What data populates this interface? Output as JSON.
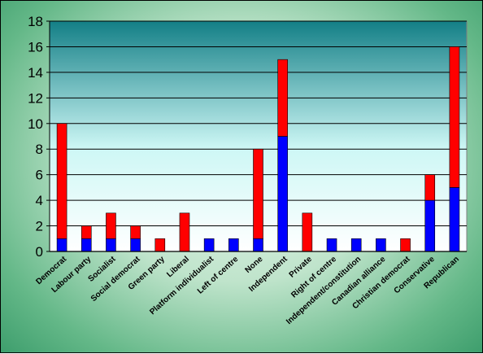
{
  "chart_data": {
    "type": "bar",
    "stacked": true,
    "categories": [
      "Democrat",
      "Labour party",
      "Socialist",
      "Social democrat",
      "Green party",
      "Liberal",
      "Platform individualist",
      "Left of centre",
      "None",
      "Independent",
      "Private",
      "Right of centre",
      "Independent/constitution",
      "Canadian alliance",
      "Christian democrat",
      "Conservative",
      "Republican"
    ],
    "series": [
      {
        "color": "#0000ff",
        "values": [
          1,
          1,
          1,
          1,
          0,
          0,
          1,
          1,
          1,
          9,
          0,
          1,
          1,
          1,
          0,
          4,
          5
        ]
      },
      {
        "color": "#ff0000",
        "values": [
          9,
          1,
          2,
          1,
          1,
          3,
          0,
          0,
          7,
          6,
          3,
          0,
          0,
          0,
          1,
          2,
          11
        ]
      }
    ],
    "yticks": [
      "0",
      "2",
      "4",
      "6",
      "8",
      "10",
      "12",
      "14",
      "16",
      "18"
    ],
    "ylim": [
      0,
      18
    ],
    "grid": true,
    "legend": "none",
    "plot_colors": {
      "top": "#137f86",
      "bottom": "#ffffff",
      "grid": "#000000"
    }
  }
}
